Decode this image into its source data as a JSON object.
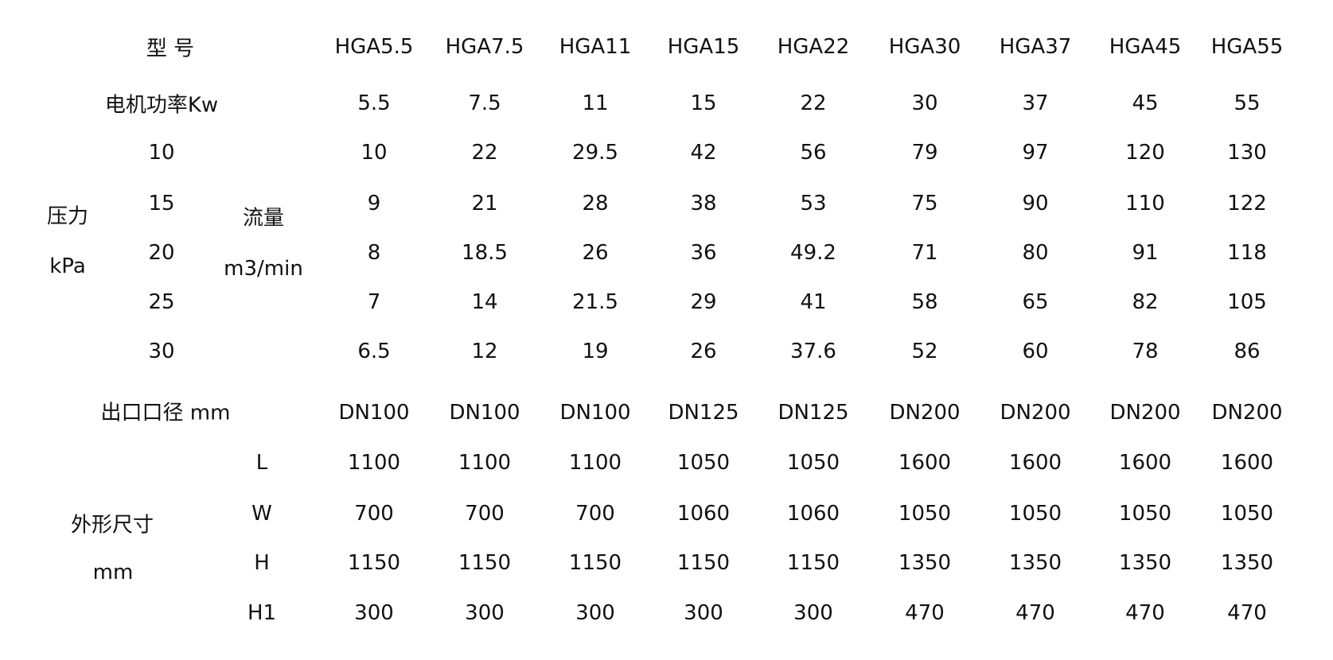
{
  "labels": {
    "model": "型  号",
    "power": "电机功率Kw",
    "pressure": "压力",
    "pressure_unit": "kPa",
    "flow": "流量",
    "flow_unit": "m3/min",
    "outlet": "出口口径 mm",
    "dimensions": "外形尺寸",
    "dimensions_unit": "mm"
  },
  "models": [
    "HGA5.5",
    "HGA7.5",
    "HGA11",
    "HGA15",
    "HGA22",
    "HGA30",
    "HGA37",
    "HGA45",
    "HGA55"
  ],
  "power": [
    "5.5",
    "7.5",
    "11",
    "15",
    "22",
    "30",
    "37",
    "45",
    "55"
  ],
  "flow_rows": [
    {
      "pressure": "10",
      "values": [
        "10",
        "22",
        "29.5",
        "42",
        "56",
        "79",
        "97",
        "120",
        "130"
      ]
    },
    {
      "pressure": "15",
      "values": [
        "9",
        "21",
        "28",
        "38",
        "53",
        "75",
        "90",
        "110",
        "122"
      ]
    },
    {
      "pressure": "20",
      "values": [
        "8",
        "18.5",
        "26",
        "36",
        "49.2",
        "71",
        "80",
        "91",
        "118"
      ]
    },
    {
      "pressure": "25",
      "values": [
        "7",
        "14",
        "21.5",
        "29",
        "41",
        "58",
        "65",
        "82",
        "105"
      ]
    },
    {
      "pressure": "30",
      "values": [
        "6.5",
        "12",
        "19",
        "26",
        "37.6",
        "52",
        "60",
        "78",
        "86"
      ]
    }
  ],
  "outlet": [
    "DN100",
    "DN100",
    "DN100",
    "DN125",
    "DN125",
    "DN200",
    "DN200",
    "DN200",
    "DN200"
  ],
  "dim_rows": [
    {
      "label": "L",
      "values": [
        "1100",
        "1100",
        "1100",
        "1050",
        "1050",
        "1600",
        "1600",
        "1600",
        "1600"
      ]
    },
    {
      "label": "W",
      "values": [
        "700",
        "700",
        "700",
        "1060",
        "1060",
        "1050",
        "1050",
        "1050",
        "1050"
      ]
    },
    {
      "label": "H",
      "values": [
        "1150",
        "1150",
        "1150",
        "1150",
        "1150",
        "1350",
        "1350",
        "1350",
        "1350"
      ]
    },
    {
      "label": "H1",
      "values": [
        "300",
        "300",
        "300",
        "300",
        "300",
        "470",
        "470",
        "470",
        "470"
      ]
    }
  ]
}
